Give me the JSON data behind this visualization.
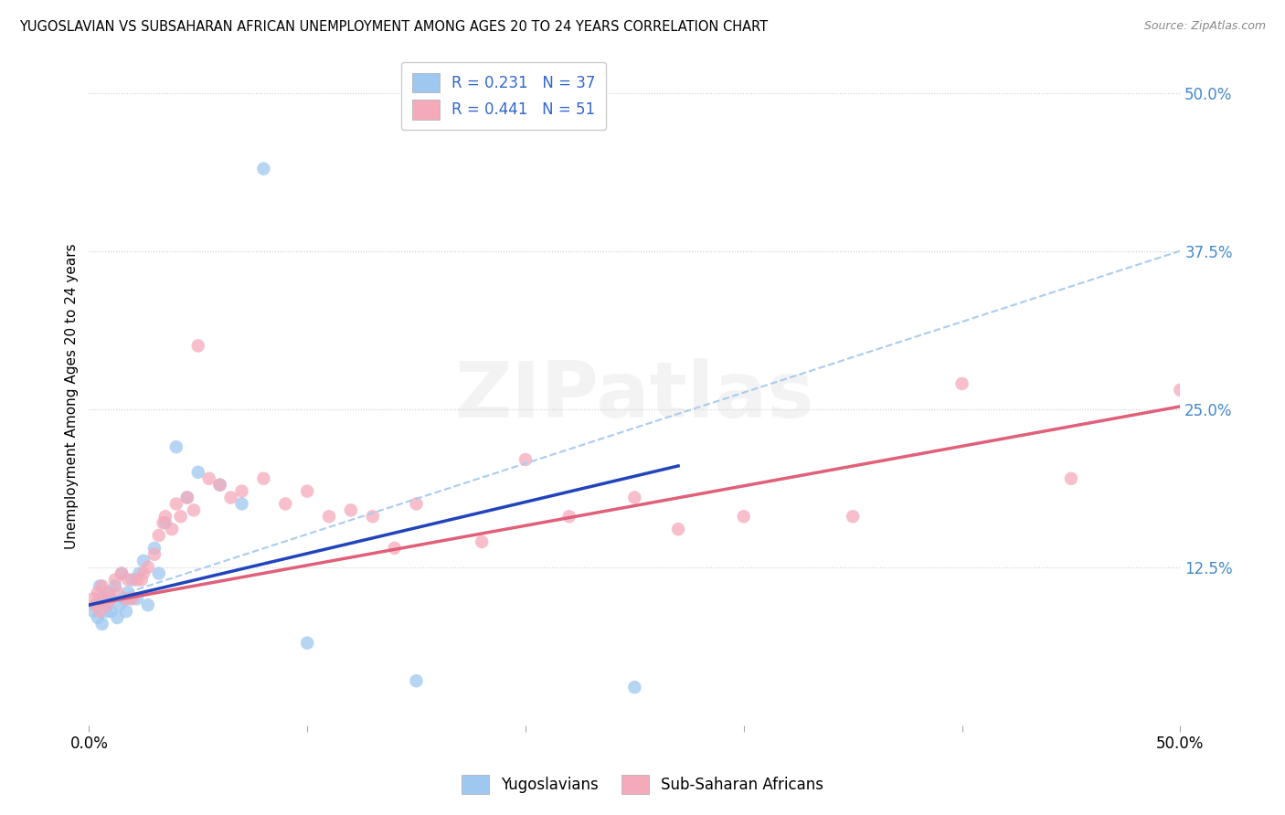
{
  "title": "YUGOSLAVIAN VS SUBSAHARAN AFRICAN UNEMPLOYMENT AMONG AGES 20 TO 24 YEARS CORRELATION CHART",
  "source": "Source: ZipAtlas.com",
  "ylabel": "Unemployment Among Ages 20 to 24 years",
  "xlim": [
    0.0,
    0.5
  ],
  "ylim": [
    0.0,
    0.52
  ],
  "ytick_vals": [
    0.0,
    0.125,
    0.25,
    0.375,
    0.5
  ],
  "ytick_labels": [
    "",
    "12.5%",
    "25.0%",
    "37.5%",
    "50.0%"
  ],
  "xtick_vals": [
    0.0,
    0.1,
    0.2,
    0.3,
    0.4,
    0.5
  ],
  "xtick_labels": [
    "0.0%",
    "",
    "",
    "",
    "",
    "50.0%"
  ],
  "legend_r1": "R = 0.231",
  "legend_n1": "N = 37",
  "legend_r2": "R = 0.441",
  "legend_n2": "N = 51",
  "blue_scatter_color": "#9EC8F0",
  "pink_scatter_color": "#F5AABB",
  "blue_line_color": "#2244BB",
  "pink_line_color": "#E0607A",
  "dashed_line_color": "#AACCEE",
  "watermark": "ZIPatlas",
  "blue_line_x0": 0.0,
  "blue_line_y0": 0.095,
  "blue_line_x1": 0.27,
  "blue_line_y1": 0.205,
  "pink_line_x0": 0.0,
  "pink_line_y0": 0.095,
  "pink_line_x1": 0.5,
  "pink_line_y1": 0.252,
  "dashed_line_x0": 0.0,
  "dashed_line_y0": 0.095,
  "dashed_line_x1": 0.5,
  "dashed_line_y1": 0.375,
  "yug_x": [
    0.002,
    0.003,
    0.004,
    0.005,
    0.005,
    0.006,
    0.007,
    0.008,
    0.008,
    0.009,
    0.01,
    0.01,
    0.012,
    0.013,
    0.014,
    0.015,
    0.016,
    0.017,
    0.018,
    0.019,
    0.02,
    0.022,
    0.023,
    0.025,
    0.027,
    0.03,
    0.032,
    0.035,
    0.04,
    0.045,
    0.05,
    0.06,
    0.07,
    0.08,
    0.1,
    0.15,
    0.25
  ],
  "yug_y": [
    0.09,
    0.095,
    0.085,
    0.1,
    0.11,
    0.08,
    0.1,
    0.09,
    0.095,
    0.105,
    0.09,
    0.1,
    0.11,
    0.085,
    0.095,
    0.12,
    0.1,
    0.09,
    0.105,
    0.1,
    0.115,
    0.1,
    0.12,
    0.13,
    0.095,
    0.14,
    0.12,
    0.16,
    0.22,
    0.18,
    0.2,
    0.19,
    0.175,
    0.44,
    0.065,
    0.035,
    0.03
  ],
  "sub_x": [
    0.002,
    0.003,
    0.004,
    0.005,
    0.006,
    0.007,
    0.008,
    0.009,
    0.01,
    0.012,
    0.013,
    0.015,
    0.017,
    0.018,
    0.02,
    0.022,
    0.024,
    0.025,
    0.027,
    0.03,
    0.032,
    0.034,
    0.035,
    0.038,
    0.04,
    0.042,
    0.045,
    0.048,
    0.05,
    0.055,
    0.06,
    0.065,
    0.07,
    0.08,
    0.09,
    0.1,
    0.11,
    0.12,
    0.13,
    0.14,
    0.15,
    0.18,
    0.2,
    0.22,
    0.25,
    0.27,
    0.3,
    0.35,
    0.4,
    0.45,
    0.5
  ],
  "sub_y": [
    0.1,
    0.095,
    0.105,
    0.09,
    0.11,
    0.1,
    0.095,
    0.105,
    0.1,
    0.115,
    0.105,
    0.12,
    0.1,
    0.115,
    0.1,
    0.115,
    0.115,
    0.12,
    0.125,
    0.135,
    0.15,
    0.16,
    0.165,
    0.155,
    0.175,
    0.165,
    0.18,
    0.17,
    0.3,
    0.195,
    0.19,
    0.18,
    0.185,
    0.195,
    0.175,
    0.185,
    0.165,
    0.17,
    0.165,
    0.14,
    0.175,
    0.145,
    0.21,
    0.165,
    0.18,
    0.155,
    0.165,
    0.165,
    0.27,
    0.195,
    0.265
  ]
}
